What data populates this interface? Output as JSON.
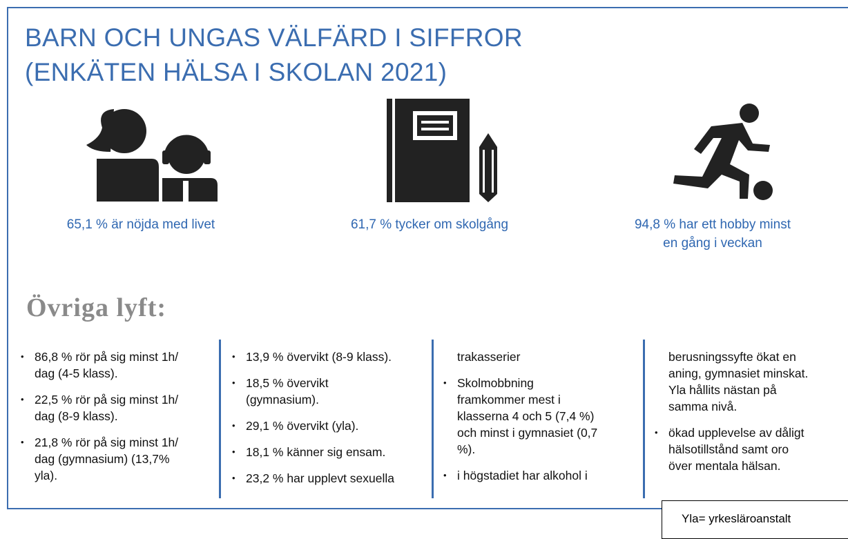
{
  "header": {
    "title_lines": [
      "BARN OCH UNGAS VÄLFÄRD I SIFFROR",
      "(ENKÄTEN HÄLSA I SKOLAN 2021)"
    ]
  },
  "highlights": [
    {
      "text": "65,1 % är nöjda med livet"
    },
    {
      "text": "61,7 % tycker om skolgång"
    },
    {
      "text": "94,8 % har ett hobby minst\nen gång i veckan"
    }
  ],
  "section": {
    "title": "Övriga lyft:"
  },
  "columns": [
    {
      "continuation": null,
      "items": [
        "86,8 % rör på sig minst 1h/\ndag (4-5 klass).",
        "22,5 % rör på sig minst 1h/\ndag (8-9 klass).",
        "21,8 % rör på sig minst 1h/\ndag (gymnasium) (13,7%\nyla)."
      ]
    },
    {
      "continuation": null,
      "items": [
        "13,9 % övervikt (8-9 klass).",
        "18,5 % övervikt\n(gymnasium).",
        "29,1 % övervikt (yla).",
        "18,1 % känner sig ensam.",
        "23,2 % har upplevt sexuella"
      ]
    },
    {
      "continuation": "trakasserier",
      "items": [
        "Skolmobbning\nframkommer mest  i\nklasserna 4 och 5 (7,4 %)\noch minst i gymnasiet (0,7\n%).",
        "i högstadiet har alkohol i"
      ]
    },
    {
      "continuation": "berusningssyfte ökat en\naning, gymnasiet minskat.\nYla hållits nästan på\nsamma nivå.",
      "items": [
        " ökad upplevelse av dåligt\nhälsotillstånd samt oro\növer mentala hälsan."
      ]
    }
  ],
  "footnote": "Yla= yrkesläroanstalt"
}
